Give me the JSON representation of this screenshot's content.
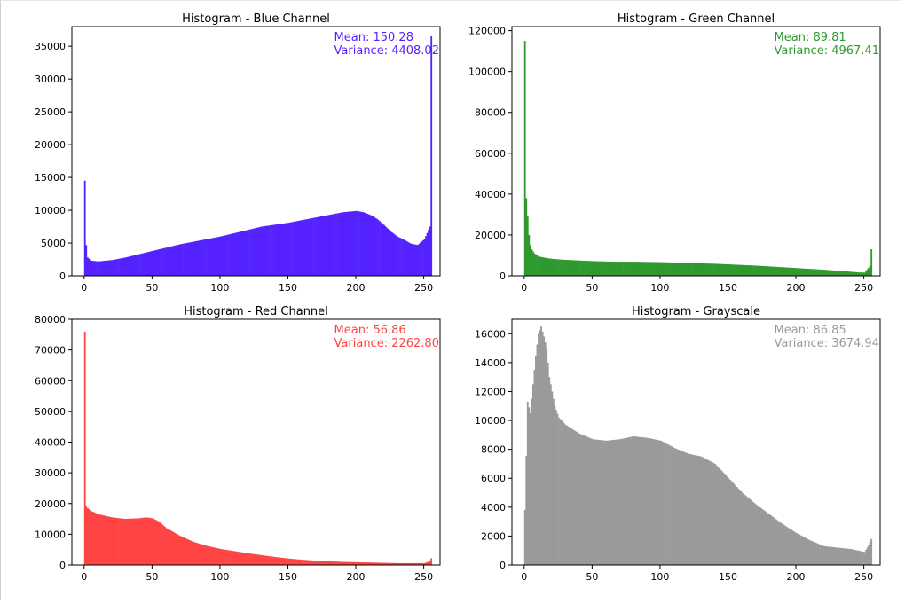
{
  "chart_data": [
    {
      "type": "bar",
      "title": "Histogram - Blue Channel",
      "color": "#5522ff",
      "xlim": [
        -9,
        262
      ],
      "ylim": [
        0,
        38000
      ],
      "xticks": [
        0,
        50,
        100,
        150,
        200,
        250
      ],
      "yticks": [
        0,
        5000,
        10000,
        15000,
        20000,
        25000,
        30000,
        35000
      ],
      "annotation": {
        "mean": "Mean: 150.28",
        "variance": "Variance: 4408.02"
      },
      "series": [
        {
          "points": [
            [
              0,
              14500
            ],
            [
              1,
              4700
            ],
            [
              2,
              2800
            ],
            [
              5,
              2300
            ],
            [
              10,
              2200
            ],
            [
              20,
              2400
            ],
            [
              30,
              2800
            ],
            [
              40,
              3300
            ],
            [
              50,
              3800
            ],
            [
              60,
              4300
            ],
            [
              70,
              4800
            ],
            [
              80,
              5200
            ],
            [
              90,
              5600
            ],
            [
              100,
              6000
            ],
            [
              110,
              6500
            ],
            [
              120,
              7000
            ],
            [
              130,
              7500
            ],
            [
              140,
              7800
            ],
            [
              150,
              8100
            ],
            [
              160,
              8500
            ],
            [
              170,
              8900
            ],
            [
              180,
              9300
            ],
            [
              190,
              9700
            ],
            [
              195,
              9800
            ],
            [
              200,
              9900
            ],
            [
              205,
              9700
            ],
            [
              210,
              9300
            ],
            [
              215,
              8700
            ],
            [
              220,
              7800
            ],
            [
              225,
              6800
            ],
            [
              230,
              6000
            ],
            [
              235,
              5500
            ],
            [
              240,
              4900
            ],
            [
              245,
              4700
            ],
            [
              250,
              5600
            ],
            [
              253,
              7000
            ],
            [
              254,
              7500
            ],
            [
              255,
              36500
            ]
          ]
        }
      ]
    },
    {
      "type": "bar",
      "title": "Histogram - Green Channel",
      "color": "#2e9a2e",
      "xlim": [
        -9,
        262
      ],
      "ylim": [
        0,
        122000
      ],
      "xticks": [
        0,
        50,
        100,
        150,
        200,
        250
      ],
      "yticks": [
        0,
        20000,
        40000,
        60000,
        80000,
        100000,
        120000
      ],
      "annotation": {
        "mean": "Mean: 89.81",
        "variance": "Variance: 4967.41"
      },
      "series": [
        {
          "points": [
            [
              0,
              115000
            ],
            [
              1,
              38000
            ],
            [
              2,
              29000
            ],
            [
              3,
              20000
            ],
            [
              4,
              15000
            ],
            [
              5,
              13000
            ],
            [
              7,
              11000
            ],
            [
              10,
              9500
            ],
            [
              15,
              8800
            ],
            [
              20,
              8300
            ],
            [
              30,
              7800
            ],
            [
              40,
              7500
            ],
            [
              50,
              7200
            ],
            [
              60,
              7000
            ],
            [
              70,
              6900
            ],
            [
              80,
              6900
            ],
            [
              90,
              6800
            ],
            [
              100,
              6700
            ],
            [
              110,
              6500
            ],
            [
              120,
              6300
            ],
            [
              130,
              6100
            ],
            [
              140,
              5900
            ],
            [
              150,
              5600
            ],
            [
              160,
              5300
            ],
            [
              170,
              5000
            ],
            [
              180,
              4600
            ],
            [
              190,
              4200
            ],
            [
              200,
              3800
            ],
            [
              210,
              3400
            ],
            [
              220,
              3000
            ],
            [
              230,
              2500
            ],
            [
              240,
              2000
            ],
            [
              245,
              1700
            ],
            [
              250,
              1600
            ],
            [
              253,
              4000
            ],
            [
              254,
              5000
            ],
            [
              255,
              13000
            ]
          ]
        }
      ]
    },
    {
      "type": "bar",
      "title": "Histogram - Red Channel",
      "color": "#ff4444",
      "xlim": [
        -9,
        262
      ],
      "ylim": [
        0,
        80000
      ],
      "xticks": [
        0,
        50,
        100,
        150,
        200,
        250
      ],
      "yticks": [
        0,
        10000,
        20000,
        30000,
        40000,
        50000,
        60000,
        70000,
        80000
      ],
      "annotation": {
        "mean": "Mean: 56.86",
        "variance": "Variance: 2262.80"
      },
      "series": [
        {
          "points": [
            [
              0,
              76000
            ],
            [
              1,
              19000
            ],
            [
              2,
              18500
            ],
            [
              5,
              17500
            ],
            [
              10,
              16500
            ],
            [
              20,
              15500
            ],
            [
              30,
              15000
            ],
            [
              40,
              15200
            ],
            [
              45,
              15500
            ],
            [
              50,
              15200
            ],
            [
              55,
              14000
            ],
            [
              60,
              12000
            ],
            [
              70,
              9500
            ],
            [
              80,
              7500
            ],
            [
              90,
              6200
            ],
            [
              100,
              5200
            ],
            [
              110,
              4500
            ],
            [
              120,
              3800
            ],
            [
              130,
              3200
            ],
            [
              140,
              2600
            ],
            [
              150,
              2100
            ],
            [
              160,
              1700
            ],
            [
              170,
              1400
            ],
            [
              180,
              1200
            ],
            [
              190,
              1000
            ],
            [
              200,
              900
            ],
            [
              210,
              800
            ],
            [
              220,
              700
            ],
            [
              230,
              600
            ],
            [
              240,
              600
            ],
            [
              250,
              600
            ],
            [
              254,
              1200
            ],
            [
              255,
              2200
            ]
          ]
        }
      ]
    },
    {
      "type": "bar",
      "title": "Histogram - Grayscale",
      "color": "#9a9a9a",
      "xlim": [
        -9,
        262
      ],
      "ylim": [
        0,
        17000
      ],
      "xticks": [
        0,
        50,
        100,
        150,
        200,
        250
      ],
      "yticks": [
        0,
        2000,
        4000,
        6000,
        8000,
        10000,
        12000,
        14000,
        16000
      ],
      "annotation": {
        "mean": "Mean: 86.85",
        "variance": "Variance: 3674.94"
      },
      "series": [
        {
          "points": [
            [
              0,
              3800
            ],
            [
              2,
              11300
            ],
            [
              4,
              10500
            ],
            [
              6,
              12500
            ],
            [
              8,
              14500
            ],
            [
              10,
              16000
            ],
            [
              12,
              16500
            ],
            [
              14,
              15800
            ],
            [
              16,
              15000
            ],
            [
              18,
              13000
            ],
            [
              20,
              12000
            ],
            [
              22,
              11000
            ],
            [
              25,
              10200
            ],
            [
              30,
              9700
            ],
            [
              35,
              9400
            ],
            [
              40,
              9100
            ],
            [
              50,
              8700
            ],
            [
              60,
              8600
            ],
            [
              70,
              8700
            ],
            [
              80,
              8900
            ],
            [
              90,
              8800
            ],
            [
              100,
              8600
            ],
            [
              110,
              8100
            ],
            [
              120,
              7700
            ],
            [
              130,
              7500
            ],
            [
              140,
              7000
            ],
            [
              150,
              6000
            ],
            [
              160,
              5000
            ],
            [
              170,
              4200
            ],
            [
              180,
              3500
            ],
            [
              190,
              2800
            ],
            [
              200,
              2200
            ],
            [
              210,
              1700
            ],
            [
              220,
              1300
            ],
            [
              230,
              1200
            ],
            [
              240,
              1100
            ],
            [
              250,
              900
            ],
            [
              252,
              1200
            ],
            [
              255,
              1800
            ]
          ]
        }
      ]
    }
  ]
}
